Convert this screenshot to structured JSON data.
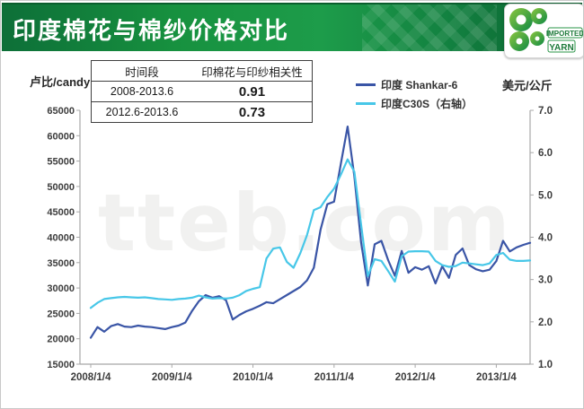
{
  "header": {
    "title": "印度棉花与棉纱价格对比",
    "logo": {
      "line1": "IMPORTED",
      "line2": "YARN"
    }
  },
  "correlation_table": {
    "headers": [
      "时间段",
      "印棉花与印纱相关性"
    ],
    "rows": [
      [
        "2008-2013.6",
        "0.91"
      ],
      [
        "2012.6-2013.6",
        "0.73"
      ]
    ]
  },
  "watermark": "tteb.com",
  "colors": {
    "title_bar_green": "#17913f",
    "title_bar_green_dark": "#0a5e2d",
    "shankar6_line": "#3a55a6",
    "c30s_line": "#47c7e8",
    "axis_line": "#a8a8a8",
    "axis_text": "#3c3c3c"
  },
  "chart_data": {
    "type": "line",
    "title": "印度棉花与棉纱价格对比",
    "frequency": "monthly",
    "period_start": "2008/1",
    "period_end": "2013/6",
    "x_axis": {
      "tick_labels": [
        "2008/1/4",
        "2009/1/4",
        "2010/1/4",
        "2011/1/4",
        "2012/1/4",
        "2013/1/4"
      ]
    },
    "y_left": {
      "label": "卢比/candy",
      "min": 15000,
      "max": 65000,
      "step": 5000
    },
    "y_right": {
      "label": "美元/公斤",
      "min": 1.0,
      "max": 7.0,
      "step": 1.0
    },
    "grid": false,
    "legend_position": "top-right",
    "series": [
      {
        "name": "印度 Shankar-6",
        "axis": "left",
        "unit": "卢比/candy",
        "color": "#3a55a6",
        "values": [
          20200,
          22300,
          21400,
          22500,
          22900,
          22400,
          22300,
          22600,
          22400,
          22300,
          22100,
          21900,
          22300,
          22600,
          23200,
          25500,
          27400,
          28600,
          28100,
          28400,
          27600,
          23800,
          24700,
          25400,
          25900,
          26500,
          27200,
          27000,
          27800,
          28600,
          29400,
          30200,
          31500,
          34000,
          41500,
          46500,
          47000,
          54500,
          61800,
          52000,
          39000,
          30500,
          38600,
          39300,
          35500,
          32400,
          37300,
          33000,
          34100,
          33600,
          34300,
          30900,
          34300,
          32000,
          36500,
          37800,
          34500,
          33700,
          33300,
          33600,
          35300,
          39300,
          37200,
          38000,
          38500,
          38900
        ]
      },
      {
        "name": "印度C30S（右轴）",
        "axis": "right",
        "unit": "美元/公斤",
        "color": "#47c7e8",
        "values": [
          2.33,
          2.45,
          2.54,
          2.56,
          2.58,
          2.59,
          2.58,
          2.57,
          2.58,
          2.56,
          2.54,
          2.53,
          2.52,
          2.54,
          2.55,
          2.57,
          2.62,
          2.58,
          2.55,
          2.56,
          2.55,
          2.57,
          2.63,
          2.73,
          2.78,
          2.82,
          3.5,
          3.73,
          3.76,
          3.42,
          3.28,
          3.62,
          4.05,
          4.64,
          4.71,
          4.95,
          5.15,
          5.48,
          5.84,
          5.55,
          4.3,
          3.08,
          3.48,
          3.44,
          3.2,
          2.95,
          3.55,
          3.66,
          3.67,
          3.67,
          3.66,
          3.44,
          3.34,
          3.3,
          3.32,
          3.4,
          3.38,
          3.36,
          3.34,
          3.38,
          3.58,
          3.63,
          3.47,
          3.44,
          3.44,
          3.45
        ]
      }
    ]
  }
}
